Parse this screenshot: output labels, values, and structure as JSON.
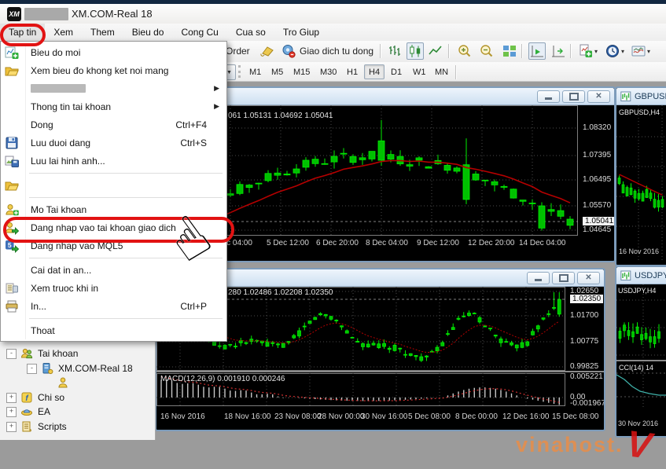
{
  "window": {
    "logo": "XM",
    "title": "XM.COM-Real 18"
  },
  "menubar": {
    "items": [
      "Tap tin",
      "Xem",
      "Them",
      "Bieu do",
      "Cong Cu",
      "Cua so",
      "Tro Giup"
    ]
  },
  "file_menu": {
    "items": [
      {
        "label": "Bieu do moi",
        "icon": "new-chart-icon"
      },
      {
        "label": "Xem bieu đo khong ket noi mang",
        "icon": "folder-open-icon"
      },
      {
        "label": "",
        "redacted": true,
        "submenu": true
      },
      {
        "label": "Thong tin tai khoan",
        "submenu": true
      },
      {
        "label": "Dong",
        "shortcut": "Ctrl+F4"
      },
      {
        "label": "Luu duoi dang",
        "shortcut": "Ctrl+S",
        "icon": "save-icon"
      },
      {
        "label": "Luu lai hinh anh...",
        "icon": "save-image-icon"
      },
      {
        "sep": true
      },
      {
        "label": "",
        "icon": "folder-open-icon"
      },
      {
        "sep": true
      },
      {
        "label": "Mo Tai khoan",
        "icon": "user-add-icon"
      },
      {
        "label": "Dang nhap vao tai khoan giao dich",
        "icon": "user-login-icon",
        "circled": true
      },
      {
        "label": "Dang nhap vao MQL5",
        "icon": "mql5-icon"
      },
      {
        "sep": true
      },
      {
        "label": "Cai dat in an..."
      },
      {
        "label": "Xem truoc khi in",
        "icon": "print-preview-icon"
      },
      {
        "label": "In...",
        "shortcut": "Ctrl+P",
        "icon": "printer-icon"
      },
      {
        "sep": true
      },
      {
        "label": "Thoat"
      }
    ]
  },
  "toolbar": {
    "order_label": "Order",
    "autotrading_label": "Giao dich tu dong",
    "timeframes": [
      "M1",
      "M5",
      "M15",
      "M30",
      "H1",
      "H4",
      "D1",
      "W1",
      "MN"
    ],
    "active_timeframe": "H4"
  },
  "navigator": {
    "items": [
      {
        "label": "Tai khoan",
        "icon": "accounts-icon",
        "level": 0,
        "expand": "-"
      },
      {
        "label": "XM.COM-Real 18",
        "icon": "server-icon",
        "level": 1,
        "expand": "-"
      },
      {
        "label": "",
        "icon": "person-icon",
        "level": 2,
        "expand": ""
      },
      {
        "label": "Chi so",
        "icon": "indicator-icon",
        "level": 0,
        "expand": "+"
      },
      {
        "label": "EA",
        "icon": "ea-icon",
        "level": 0,
        "expand": "+"
      },
      {
        "label": "Scripts",
        "icon": "scripts-icon",
        "level": 0,
        "expand": "+"
      }
    ]
  },
  "charts": {
    "main1": {
      "ohlc": "061 1.05131 1.04692 1.05041",
      "prices": [
        "1.08320",
        "1.07395",
        "1.06495",
        "1.05570",
        "1.05041",
        "1.04645"
      ],
      "current_price": "1.05041",
      "times": [
        "2 Dec 04:00",
        "5 Dec 12:00",
        "6 Dec 20:00",
        "8 Dec 04:00",
        "9 Dec 12:00",
        "12 Dec 20:00",
        "14 Dec 04:00"
      ]
    },
    "main2": {
      "ohlc": "280 1.02486 1.02208 1.02350",
      "prices": [
        "1.02650",
        "1.02350",
        "1.01700",
        "1.00775",
        "0.99825"
      ],
      "current_price": "1.02350",
      "macd_label": "MACD(12,26,9) 0.001910 0.000246",
      "macd_scale": [
        "0.005221",
        "0.00",
        "-0.001967"
      ],
      "times": [
        "16 Nov 2016",
        "18 Nov 16:00",
        "23 Nov 08:00",
        "28 Nov 00:00",
        "30 Nov 16:00",
        "5 Dec 08:00",
        "8 Dec 00:00",
        "12 Dec 16:00",
        "15 Dec 08:00"
      ]
    },
    "mini1": {
      "title": "GBPUSD,H4",
      "label": "GBPUSD,H4",
      "time": "16 Nov 2016"
    },
    "mini2": {
      "title": "USDJPY,H4",
      "label": "USDJPY,H4",
      "cci_label": "CCI(14) 14",
      "time": "30 Nov 2016"
    }
  },
  "watermark": {
    "text": "vinahost.",
    "v": "V"
  },
  "colors": {
    "bull_candle": "#00c000",
    "ma_line": "#b40000",
    "macd_bars": "#c8c8c8",
    "cci_line": "#3fb0a8",
    "highlight": "#e21313"
  }
}
